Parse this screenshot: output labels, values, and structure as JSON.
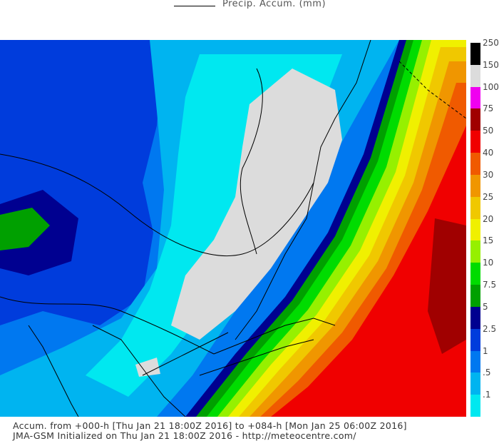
{
  "title": {
    "text": "Precip. Accum. (mm)"
  },
  "legend": {
    "levels": [
      {
        "label": ".1",
        "color": "#00e8f0"
      },
      {
        "label": ".5",
        "color": "#00b4f0"
      },
      {
        "label": "1",
        "color": "#0078f0"
      },
      {
        "label": "2.5",
        "color": "#003cdc"
      },
      {
        "label": "5",
        "color": "#000090"
      },
      {
        "label": "7.5",
        "color": "#00a000"
      },
      {
        "label": "10",
        "color": "#00dc00"
      },
      {
        "label": "15",
        "color": "#96f000"
      },
      {
        "label": "20",
        "color": "#f0f000"
      },
      {
        "label": "25",
        "color": "#f0c800"
      },
      {
        "label": "30",
        "color": "#f09600"
      },
      {
        "label": "40",
        "color": "#f05a00"
      },
      {
        "label": "50",
        "color": "#f00000"
      },
      {
        "label": "75",
        "color": "#a00000"
      },
      {
        "label": "100",
        "color": "#f000f0"
      },
      {
        "label": "150",
        "color": "#dcdcdc"
      },
      {
        "label": "250",
        "color": "#000000"
      }
    ]
  },
  "footer": {
    "line1": "Accum. from +000-h [Thu Jan 21 18:00Z 2016] to +084-h [Mon Jan 25 06:00Z 2016]",
    "line2": "JMA-GSM Initialized on Thu Jan 21 18:00Z 2016 - http://meteocentre.com/"
  }
}
